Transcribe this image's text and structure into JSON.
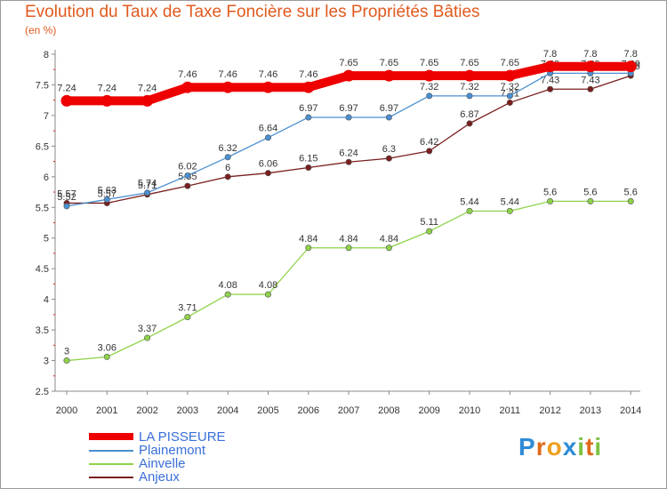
{
  "title": "Evolution du Taux de Taxe Foncière sur les Propriétés Bâties",
  "unit_label": "(en %)",
  "logo_text": "Proxiti",
  "chart_data": {
    "type": "line",
    "title": "Evolution du Taux de Taxe Foncière sur les Propriétés Bâties",
    "ylabel": "(en %)",
    "xlabel": "",
    "x": [
      "2000",
      "2001",
      "2002",
      "2003",
      "2004",
      "2005",
      "2006",
      "2007",
      "2008",
      "2009",
      "2010",
      "2011",
      "2012",
      "2013",
      "2014"
    ],
    "ylim": [
      2.5,
      8
    ],
    "yticks": [
      2.5,
      3,
      3.5,
      4,
      4.5,
      5,
      5.5,
      6,
      6.5,
      7,
      7.5,
      8
    ],
    "ytick_labels": [
      "2.5",
      "3",
      "3.5",
      "4",
      "4.5",
      "5",
      "5.5",
      "6",
      "6.5",
      "7",
      "7.5",
      "8"
    ],
    "grid": false,
    "legend_position": "bottom-left",
    "series": [
      {
        "name": "LA PISSEURE",
        "color": "#ee0000",
        "values": [
          7.24,
          7.24,
          7.24,
          7.46,
          7.46,
          7.46,
          7.46,
          7.65,
          7.65,
          7.65,
          7.65,
          7.65,
          7.8,
          7.8,
          7.8
        ],
        "labels": [
          "7.24",
          "7.24",
          "7.24",
          "7.46",
          "7.46",
          "7.46",
          "7.46",
          "7.65",
          "7.65",
          "7.65",
          "7.65",
          "7.65",
          "7.8",
          "7.8",
          "7.8"
        ]
      },
      {
        "name": "Plainemont",
        "color": "#4a8fd0",
        "values": [
          5.52,
          5.63,
          5.74,
          6.02,
          6.32,
          6.64,
          6.97,
          6.97,
          6.97,
          7.32,
          7.32,
          7.32,
          7.69,
          7.69,
          7.69
        ],
        "labels": [
          "5.52",
          "5.63",
          "5.74",
          "6.02",
          "6.32",
          "6.64",
          "6.97",
          "6.97",
          "6.97",
          "7.32",
          "7.32",
          "7.32",
          "7.69",
          "7.69",
          "7.69"
        ]
      },
      {
        "name": "Ainvelle",
        "color": "#8fd24a",
        "values": [
          3,
          3.06,
          3.37,
          3.71,
          4.08,
          4.08,
          4.84,
          4.84,
          4.84,
          5.11,
          5.44,
          5.44,
          5.6,
          5.6,
          5.6
        ],
        "labels": [
          "3",
          "3.06",
          "3.37",
          "3.71",
          "4.08",
          "4.08",
          "4.84",
          "4.84",
          "4.84",
          "5.11",
          "5.44",
          "5.44",
          "5.6",
          "5.6",
          "5.6"
        ]
      },
      {
        "name": "Anjeux",
        "color": "#7a1e1e",
        "values": [
          5.57,
          5.57,
          5.71,
          5.85,
          6,
          6.06,
          6.15,
          6.24,
          6.3,
          6.42,
          6.87,
          7.21,
          7.43,
          7.43,
          7.65
        ],
        "labels": [
          "5.57",
          "5.57",
          "5.71",
          "5.85",
          "6",
          "6.06",
          "6.15",
          "6.24",
          "6.3",
          "6.42",
          "6.87",
          "7.21",
          "7.43",
          "7.43",
          "7.65"
        ]
      }
    ]
  }
}
